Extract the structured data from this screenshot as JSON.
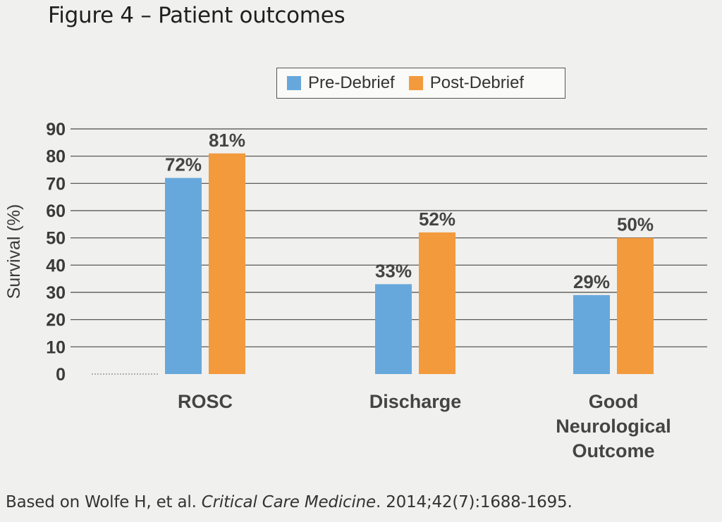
{
  "figure_title": "Figure 4 – Patient outcomes",
  "citation": {
    "prefix": "Based on Wolfe H, et al. ",
    "journal": "Critical Care Medicine",
    "suffix": ". 2014;42(7):1688-1695."
  },
  "colors": {
    "pre": "#67a8dc",
    "post": "#f39a3d",
    "grid": "#4a4a4a"
  },
  "chart_data": {
    "type": "bar",
    "title": "Figure 4 – Patient outcomes",
    "ylabel": "Survival (%)",
    "xlabel": "",
    "ylim": [
      0,
      90
    ],
    "yticks": [
      "0",
      "10",
      "20",
      "30",
      "40",
      "50",
      "60",
      "70",
      "80",
      "90"
    ],
    "grid": true,
    "legend_position": "top",
    "categories": [
      [
        "ROSC"
      ],
      [
        "Discharge"
      ],
      [
        "Good",
        "Neurological",
        "Outcome"
      ]
    ],
    "series": [
      {
        "name": "Pre-Debrief",
        "values": [
          72,
          33,
          29
        ],
        "labels": [
          "72%",
          "33%",
          "29%"
        ]
      },
      {
        "name": "Post-Debrief",
        "values": [
          81,
          52,
          50
        ],
        "labels": [
          "81%",
          "52%",
          "50%"
        ]
      }
    ]
  }
}
